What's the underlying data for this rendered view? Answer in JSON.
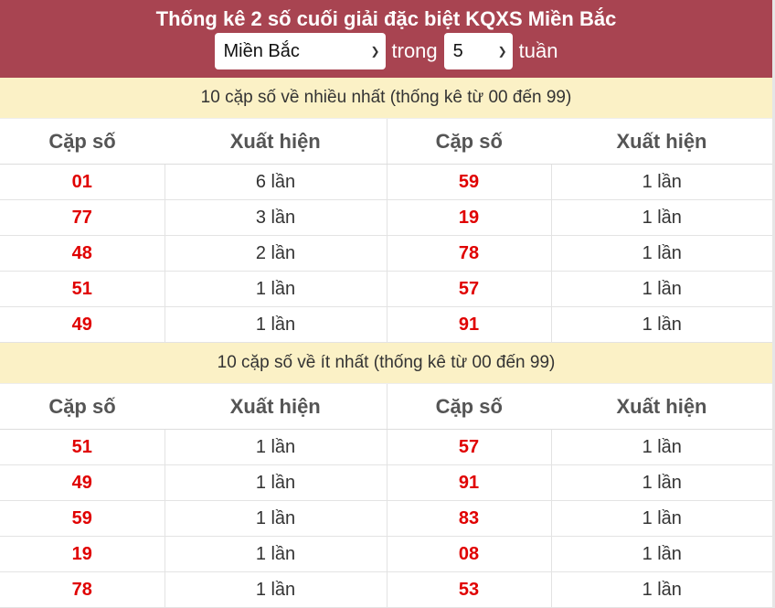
{
  "header": {
    "title": "Thống kê 2 số cuối giải đặc biệt KQXS Miền Bắc",
    "region_select": "Miền Bắc",
    "trong_label": "trong",
    "weeks_select": "5",
    "tuan_label": "tuần"
  },
  "columns": [
    "Cặp số",
    "Xuất hiện",
    "Cặp số",
    "Xuất hiện"
  ],
  "most": {
    "caption": "10 cặp số về nhiều nhất (thống kê từ 00 đến 99)",
    "rows": [
      [
        "01",
        "6 lần",
        "59",
        "1 lần"
      ],
      [
        "77",
        "3 lần",
        "19",
        "1 lần"
      ],
      [
        "48",
        "2 lần",
        "78",
        "1 lần"
      ],
      [
        "51",
        "1 lần",
        "57",
        "1 lần"
      ],
      [
        "49",
        "1 lần",
        "91",
        "1 lần"
      ]
    ]
  },
  "least": {
    "caption": "10 cặp số về ít nhất (thống kê từ 00 đến 99)",
    "rows": [
      [
        "51",
        "1 lần",
        "57",
        "1 lần"
      ],
      [
        "49",
        "1 lần",
        "91",
        "1 lần"
      ],
      [
        "59",
        "1 lần",
        "83",
        "1 lần"
      ],
      [
        "19",
        "1 lần",
        "08",
        "1 lần"
      ],
      [
        "78",
        "1 lần",
        "53",
        "1 lần"
      ]
    ]
  },
  "colors": {
    "header_bg": "#a84451",
    "caption_bg": "#fbf1c6",
    "number": "#e00000"
  }
}
